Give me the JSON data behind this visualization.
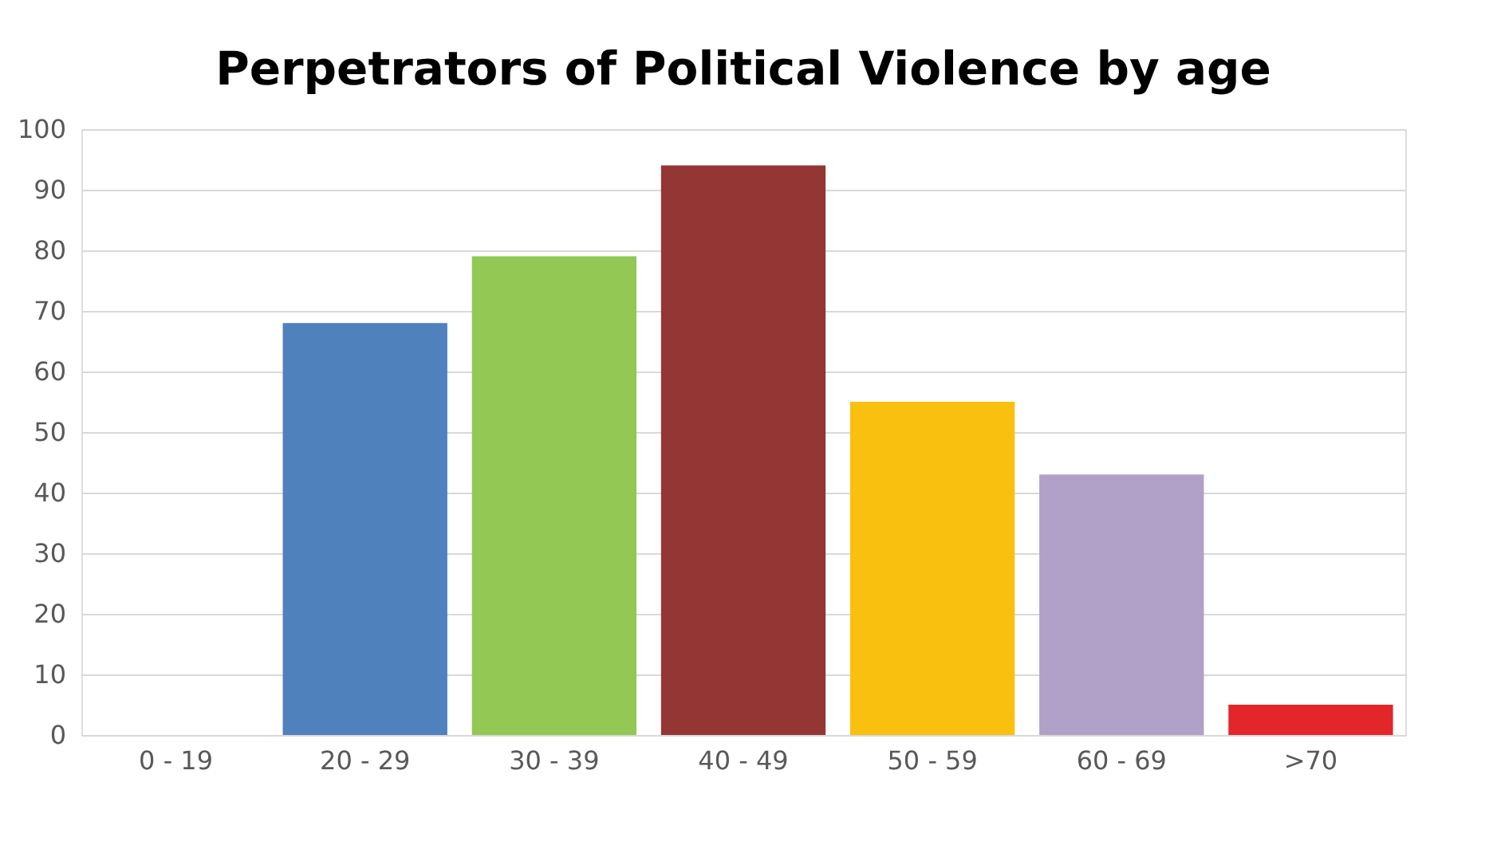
{
  "chart_data": {
    "type": "bar",
    "title": "Perpetrators of Political Violence by age",
    "categories": [
      "0 - 19",
      "20 - 29",
      "30 - 39",
      "40 - 49",
      "50 - 59",
      "60 - 69",
      ">70"
    ],
    "values": [
      0,
      68,
      79,
      94,
      55,
      43,
      5
    ],
    "colors": [
      "#4f81bd",
      "#4f81bd",
      "#92c853",
      "#943634",
      "#fac010",
      "#b1a0c7",
      "#e3262a"
    ],
    "ylim": [
      0,
      100
    ],
    "yticks": [
      0,
      10,
      20,
      30,
      40,
      50,
      60,
      70,
      80,
      90,
      100
    ],
    "grid": "y"
  }
}
